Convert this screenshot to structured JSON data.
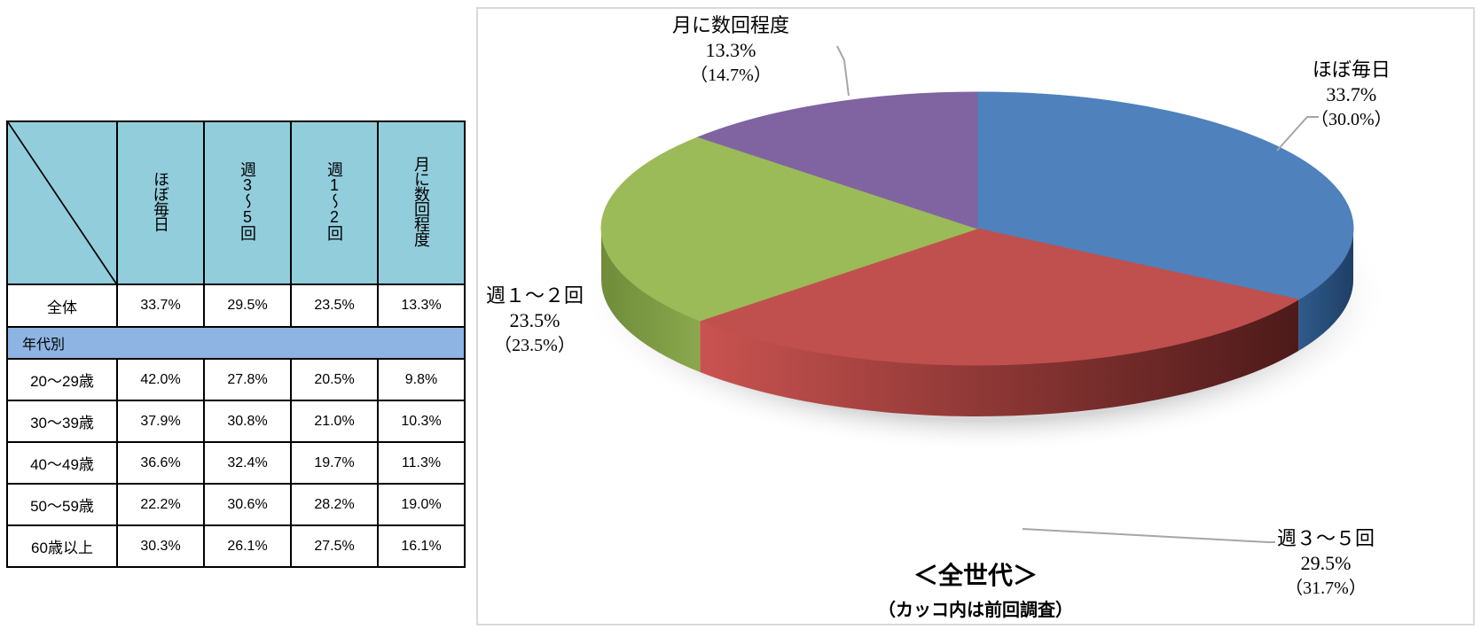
{
  "table": {
    "columns": [
      "ほぼ毎日",
      "週3～5回",
      "週1～2回",
      "月に数回程度"
    ],
    "total_row": {
      "label": "全体",
      "values": [
        "33.7%",
        "29.5%",
        "23.5%",
        "13.3%"
      ]
    },
    "group_label": "年代別",
    "rows": [
      {
        "label": "20～29歳",
        "values": [
          "42.0%",
          "27.8%",
          "20.5%",
          "9.8%"
        ]
      },
      {
        "label": "30～39歳",
        "values": [
          "37.9%",
          "30.8%",
          "21.0%",
          "10.3%"
        ]
      },
      {
        "label": "40～49歳",
        "values": [
          "36.6%",
          "32.4%",
          "19.7%",
          "11.3%"
        ]
      },
      {
        "label": "50～59歳",
        "values": [
          "22.2%",
          "30.6%",
          "28.2%",
          "19.0%"
        ]
      },
      {
        "label": "60歳以上",
        "values": [
          "30.3%",
          "26.1%",
          "27.5%",
          "16.1%"
        ]
      }
    ]
  },
  "chart_data": {
    "type": "pie",
    "title": "＜全世代＞",
    "subtitle": "（カッコ内は前回調査）",
    "slices": [
      {
        "label": "ほぼ毎日",
        "value": 33.7,
        "value_text": "33.7%",
        "previous_text": "（30.0%）",
        "color": "#4f81bd"
      },
      {
        "label": "週３～５回",
        "value": 29.5,
        "value_text": "29.5%",
        "previous_text": "（31.7%）",
        "color": "#c0504d"
      },
      {
        "label": "週１～２回",
        "value": 23.5,
        "value_text": "23.5%",
        "previous_text": "（23.5%）",
        "color": "#9bbb59"
      },
      {
        "label": "月に数回程度",
        "value": 13.3,
        "value_text": "13.3%",
        "previous_text": "（14.7%）",
        "color": "#8064a2"
      }
    ]
  }
}
